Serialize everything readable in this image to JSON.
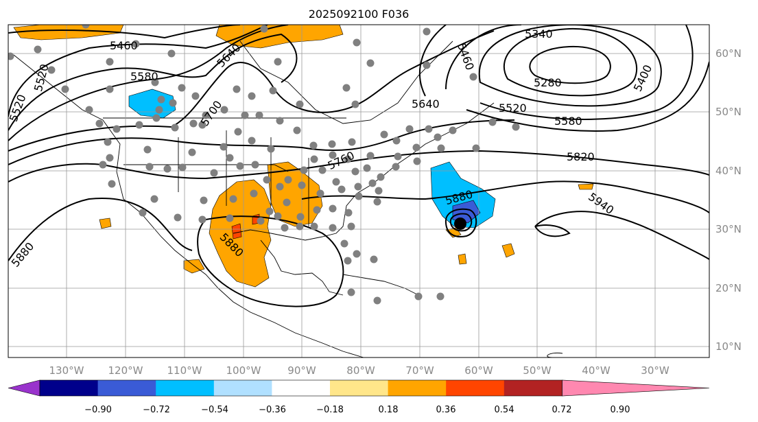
{
  "title": "2025092100 F036",
  "lon_labels": [
    "130°W",
    "120°W",
    "110°W",
    "100°W",
    "90°W",
    "80°W",
    "70°W",
    "60°W",
    "50°W",
    "40°W",
    "30°W"
  ],
  "lat_labels": [
    "60°N",
    "50°N",
    "40°N",
    "30°N",
    "20°N",
    "10°N"
  ],
  "contour_labels": [
    "5460",
    "5640",
    "5580",
    "5700",
    "5640",
    "5520",
    "5580",
    "5340",
    "5280",
    "5400",
    "5460",
    "5820",
    "5880",
    "5940",
    "5880",
    "5880",
    "5760",
    "5520",
    "5520"
  ],
  "colorbar": {
    "ticks": [
      "−0.90",
      "−0.72",
      "−0.54",
      "−0.36",
      "−0.18",
      "0.18",
      "0.36",
      "0.54",
      "0.72",
      "0.90"
    ],
    "colors": [
      "#9933cc",
      "#00008b",
      "#3a5bd6",
      "#00bfff",
      "#b0e0ff",
      "#ffffff",
      "#ffe68a",
      "#ffa500",
      "#ff4500",
      "#b22222",
      "#ff88b0"
    ]
  },
  "stations_color": "#808080"
}
